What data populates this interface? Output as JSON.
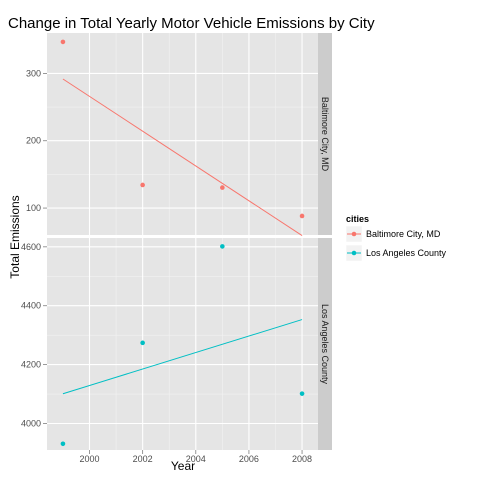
{
  "chart_data": {
    "type": "scatter",
    "title": "Change in Total Yearly Motor Vehicle Emissions by City",
    "xlabel": "Year",
    "ylabel": "Total Emissions",
    "x_ticks": [
      2000,
      2002,
      2004,
      2006,
      2008
    ],
    "xlim": [
      1998.4,
      2008.6
    ],
    "grid": true,
    "legend": {
      "title": "cities",
      "position": "right",
      "entries": [
        "Baltimore City, MD",
        "Los Angeles County"
      ]
    },
    "panels": [
      {
        "strip_label": "Baltimore City, MD",
        "ylim": [
          60,
          360
        ],
        "y_ticks": [
          100,
          200,
          300
        ],
        "series": [
          {
            "name": "Baltimore City, MD",
            "color": "#F8766D",
            "x": [
              1999,
              2002,
              2005,
              2008
            ],
            "y": [
              346.8,
              134.3,
              130.4,
              88.3
            ],
            "trend_line": {
              "x": [
                1999,
                2008
              ],
              "y": [
                291.7,
                59.2
              ]
            }
          }
        ]
      },
      {
        "strip_label": "Los Angeles County",
        "ylim": [
          3910,
          4630
        ],
        "y_ticks": [
          4000,
          4200,
          4400,
          4600
        ],
        "series": [
          {
            "name": "Los Angeles County",
            "color": "#00BFC4",
            "x": [
              1999,
              2002,
              2005,
              2008
            ],
            "y": [
              3931.1,
              4274.0,
              4601.4,
              4101.3
            ],
            "trend_line": {
              "x": [
                1999,
                2008
              ],
              "y": [
                4101.0,
                4353.0
              ]
            }
          }
        ]
      }
    ]
  }
}
